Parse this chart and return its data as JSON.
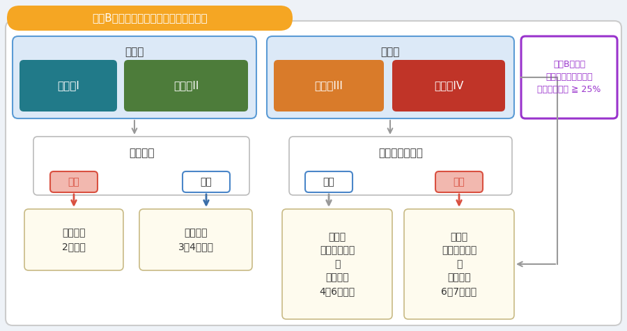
{
  "title": "成熟B細胞性リンパ腫の主な治療の流れ",
  "title_bg": "#F5A623",
  "title_text_color": "#FFFFFF",
  "bg_color": "#EEF2F7",
  "main_bg": "#FFFFFF",
  "left_box_label": "限局期",
  "left_box_bg": "#DCE9F7",
  "left_box_border": "#5B9BD5",
  "stage1_label": "病期　I",
  "stage1_bg": "#217A89",
  "stage2_label": "病期　II",
  "stage2_bg": "#4D7C3A",
  "right_box_label": "進行期",
  "right_box_bg": "#DCE9F7",
  "right_box_border": "#5B9BD5",
  "stage3_label": "病期　III",
  "stage3_bg": "#D97B2A",
  "stage4_label": "病期　IV",
  "stage4_bg": "#C03428",
  "extra_box_label": "成熟B細胞性\n急性リンパ性白血病\n骨髄腫瘍細胞 ≧ 25%",
  "extra_box_bg": "#FFFFFF",
  "extra_box_border": "#9933CC",
  "extra_text_color": "#9933CC",
  "kanzen_label": "完全切除",
  "kanzen_box_bg": "#FFFFFF",
  "kanzen_box_border": "#BBBBBB",
  "chukaku_label": "中枢神経系浸潤",
  "chukaku_box_bg": "#FFFFFF",
  "chukaku_box_border": "#BBBBBB",
  "ari_label": "あり",
  "nashi_label": "なし",
  "ari_bg_red": "#F2B8AF",
  "ari_border_red": "#D95040",
  "nashi_bg_white": "#FFFFFF",
  "nashi_border_blue": "#4A86C8",
  "result1_label": "薬物療法\n2コース",
  "result2_label": "薬物療法\n3～4コース",
  "result3_label": "前治療\n（薬物療法）\n＋\n薬物療法\n4～6コース",
  "result4_label": "前治療\n（薬物療法）\n＋\n薬物療法\n6～7コース",
  "result_bg": "#FEFBEE",
  "result_border": "#C8BA85",
  "arrow_red": "#D95040",
  "arrow_blue": "#3B6EA8",
  "arrow_gray": "#999999",
  "text_dark": "#333333",
  "stage_text": "#FFFFFF"
}
